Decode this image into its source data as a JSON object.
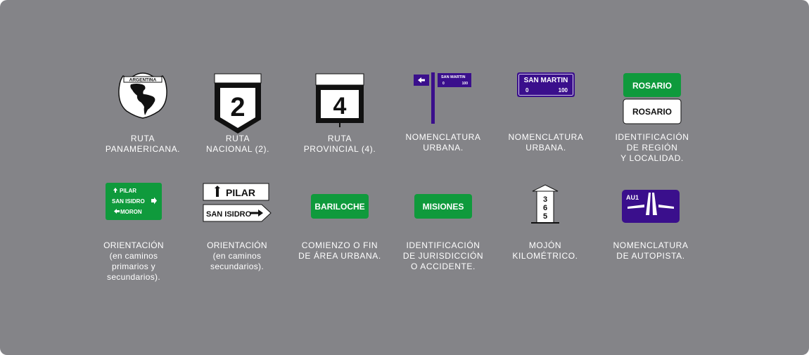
{
  "colors": {
    "background": "#848488",
    "urban_purple": "#3a0f8c",
    "green": "#0f9a3c",
    "white": "#ffffff",
    "black": "#111111"
  },
  "signs": [
    {
      "id": "ruta-panamericana",
      "icon": "shield-with-americas-map-icon",
      "text": {
        "header": "ARGENTINA"
      },
      "caption": "RUTA\nPANAMERICANA."
    },
    {
      "id": "ruta-nacional",
      "icon": "national-route-shield-icon",
      "text": {
        "number": "2"
      },
      "caption": "RUTA\nNACIONAL (2)."
    },
    {
      "id": "ruta-provincial",
      "icon": "provincial-route-sign-icon",
      "text": {
        "number": "4"
      },
      "caption": "RUTA\nPROVINCIAL (4)."
    },
    {
      "id": "nomenclatura-urbana-pole",
      "icon": "street-name-pole-icon",
      "text": {
        "street": "SAN MARTIN",
        "from": "0",
        "to": "100"
      },
      "caption": "NOMENCLATURA\nURBANA."
    },
    {
      "id": "nomenclatura-urbana-plate",
      "icon": "street-name-plate-icon",
      "text": {
        "street": "SAN MARTIN",
        "from": "0",
        "to": "100"
      },
      "caption": "NOMENCLATURA\nURBANA."
    },
    {
      "id": "identificacion-region",
      "icon": "locality-plates-icon",
      "text": {
        "top": "ROSARIO",
        "bottom": "ROSARIO"
      },
      "caption": "IDENTIFICACIÓN\nDE REGIÓN\nY LOCALIDAD."
    },
    {
      "id": "orientacion-primarios",
      "icon": "green-direction-sign-icon",
      "text": {
        "line1": "PILAR",
        "line2": "SAN ISIDRO",
        "line3": "MORON"
      },
      "caption": "ORIENTACIÓN\n(en caminos\nprimarios y\nsecundarios)."
    },
    {
      "id": "orientacion-secundarios",
      "icon": "white-direction-signs-icon",
      "text": {
        "top": "PILAR",
        "bottom": "SAN ISIDRO"
      },
      "caption": "ORIENTACIÓN\n(en caminos\nsecundarios)."
    },
    {
      "id": "comienzo-fin-area-urbana",
      "icon": "green-town-plate-icon",
      "text": {
        "name": "BARILOCHE"
      },
      "caption": "COMIENZO O FIN\nDE ÁREA URBANA."
    },
    {
      "id": "identificacion-jurisdiccion",
      "icon": "green-jurisdiction-plate-icon",
      "text": {
        "name": "MISIONES"
      },
      "caption": "IDENTIFICACIÓN\nDE JURISDICCIÓN\nO ACCIDENTE."
    },
    {
      "id": "mojon-kilometrico",
      "icon": "kilometer-marker-icon",
      "text": {
        "d1": "3",
        "d2": "6",
        "d3": "5"
      },
      "caption": "MOJÓN\nKILOMÉTRICO."
    },
    {
      "id": "nomenclatura-autopista",
      "icon": "highway-interchange-icon",
      "text": {
        "code": "AU1"
      },
      "caption": "NOMENCLATURA\nDE AUTOPISTA."
    }
  ]
}
